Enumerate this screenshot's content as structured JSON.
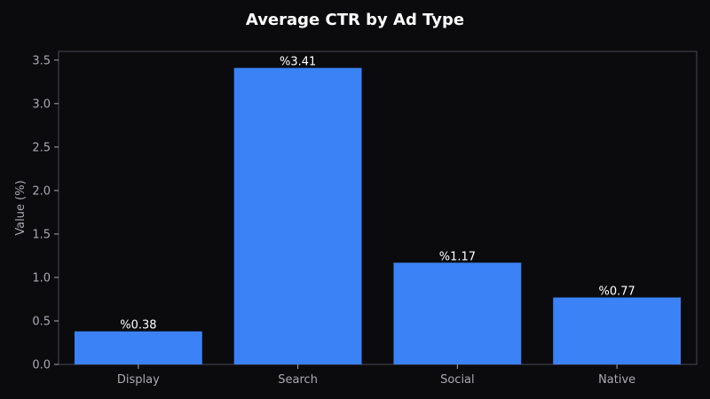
{
  "chart_data": {
    "type": "bar",
    "title": "Average CTR by Ad Type",
    "xlabel": "",
    "ylabel": "Value (%)",
    "categories": [
      "Display",
      "Search",
      "Social",
      "Native"
    ],
    "values": [
      0.38,
      3.41,
      1.17,
      0.77
    ],
    "data_labels": [
      "%0.38",
      "%3.41",
      "%1.17",
      "%0.77"
    ],
    "ylim": [
      0,
      3.6
    ],
    "yticks": [
      0.0,
      0.5,
      1.0,
      1.5,
      2.0,
      2.5,
      3.0,
      3.5
    ],
    "ytick_labels": [
      "0.0",
      "0.5",
      "1.0",
      "1.5",
      "2.0",
      "2.5",
      "3.0",
      "3.5"
    ],
    "grid": false,
    "legend": "none",
    "colors": {
      "background": "#0b0b0d",
      "bar": "#3b82f6",
      "axis": "#4a4a55",
      "text": "#a9a9b3",
      "title": "#ffffff"
    }
  }
}
